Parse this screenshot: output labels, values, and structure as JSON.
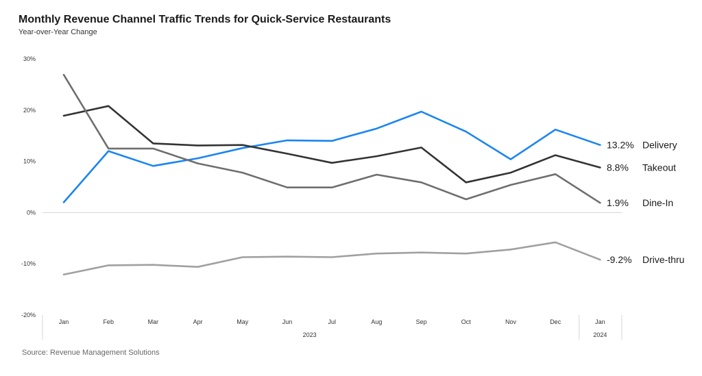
{
  "chart_data": {
    "type": "line",
    "title": "Monthly Revenue Channel Traffic Trends for Quick-Service Restaurants",
    "subtitle": "Year-over-Year Change",
    "source": "Source: Revenue Management Solutions",
    "x": [
      "Jan",
      "Feb",
      "Mar",
      "Apr",
      "May",
      "Jun",
      "Jul",
      "Aug",
      "Sep",
      "Oct",
      "Nov",
      "Dec",
      "Jan"
    ],
    "year_groups": [
      {
        "label": "2023",
        "start": 0,
        "end": 11
      },
      {
        "label": "2024",
        "start": 12,
        "end": 12
      }
    ],
    "ylim": [
      -20,
      30
    ],
    "yticks": [
      30,
      20,
      10,
      0,
      -10,
      -20
    ],
    "ytick_labels": [
      "30%",
      "20%",
      "10%",
      "0%",
      "-10%",
      "-20%"
    ],
    "series": [
      {
        "name": "Delivery",
        "end_label": "13.2%",
        "color": "#1a85f0",
        "values": [
          2.0,
          12.0,
          9.1,
          10.6,
          12.6,
          14.1,
          14.0,
          16.4,
          19.7,
          15.8,
          10.4,
          16.2,
          13.2
        ]
      },
      {
        "name": "Takeout",
        "end_label": "8.8%",
        "color": "#333333",
        "values": [
          18.9,
          20.8,
          13.5,
          13.1,
          13.2,
          11.5,
          9.7,
          11.0,
          12.7,
          5.9,
          7.8,
          11.2,
          8.8
        ]
      },
      {
        "name": "Dine-In",
        "end_label": "1.9%",
        "color": "#6e6e6e",
        "values": [
          26.9,
          12.5,
          12.5,
          9.6,
          7.8,
          4.9,
          4.9,
          7.4,
          5.9,
          2.6,
          5.4,
          7.5,
          1.9
        ]
      },
      {
        "name": "Drive-thru",
        "end_label": "-9.2%",
        "color": "#a0a0a0",
        "values": [
          -12.1,
          -10.3,
          -10.2,
          -10.6,
          -8.7,
          -8.6,
          -8.7,
          -8.0,
          -7.8,
          -8.0,
          -7.2,
          -5.8,
          -9.2
        ]
      }
    ]
  }
}
